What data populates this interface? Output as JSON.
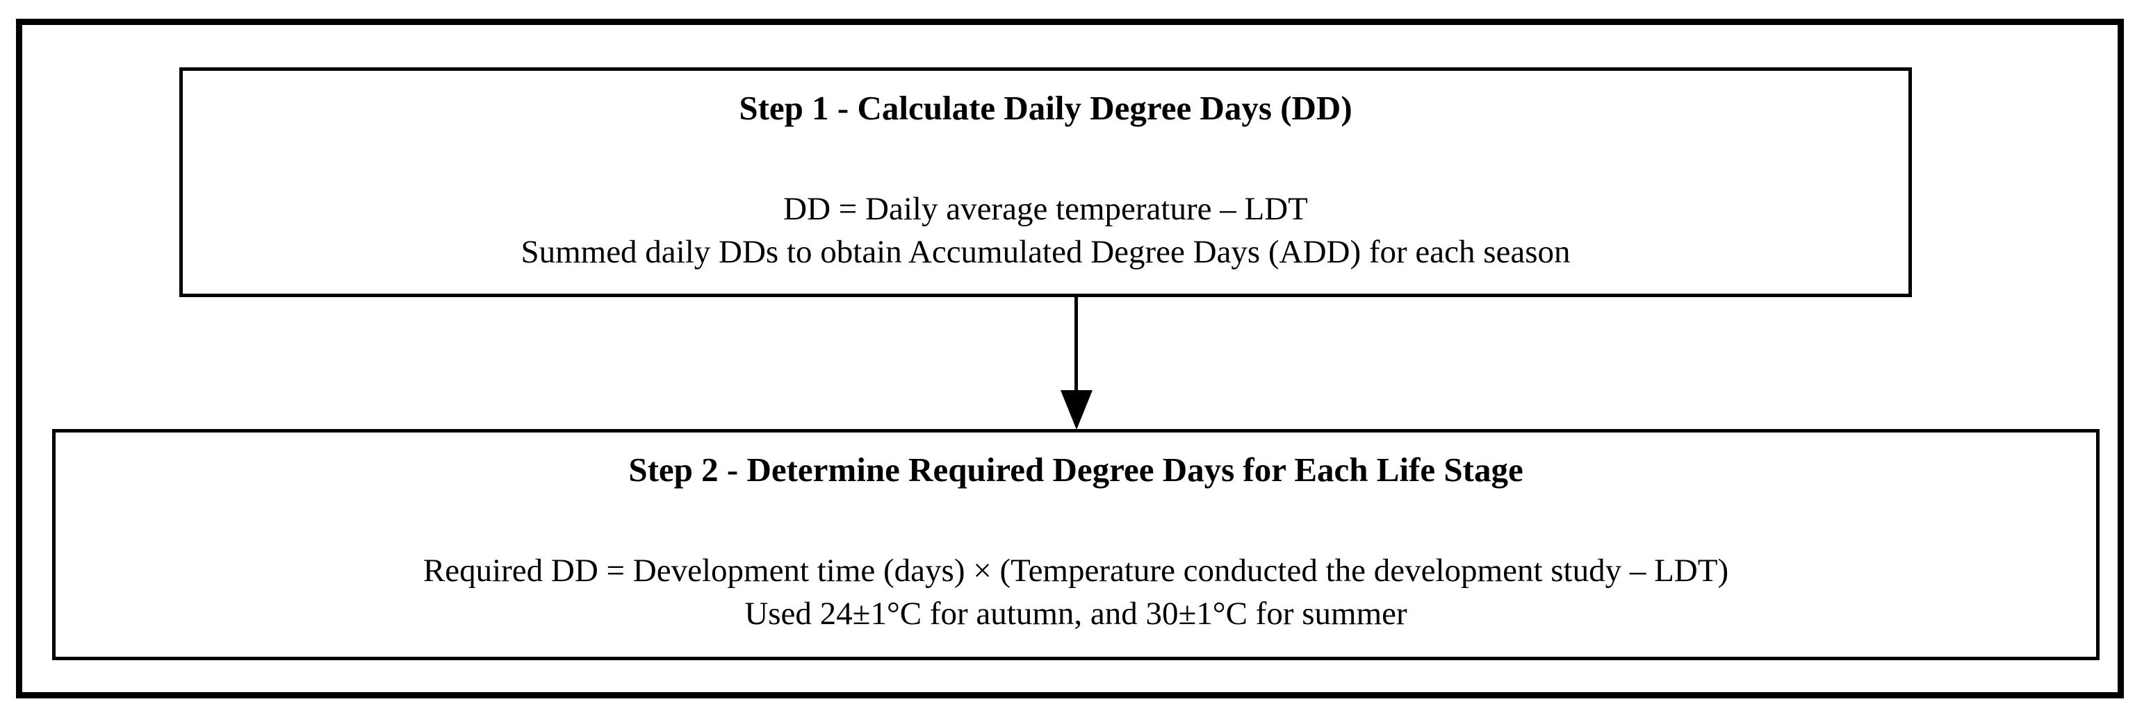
{
  "figure": {
    "step1": {
      "title": "Step 1 - Calculate Daily Degree Days (DD)",
      "formula": "DD = Daily average temperature – LDT",
      "description": "Summed daily DDs to obtain Accumulated Degree Days (ADD) for each season"
    },
    "step2": {
      "title": "Step 2 - Determine Required Degree Days for Each Life Stage",
      "formula": "Required DD = Development time (days) × (Temperature conducted the development study – LDT)",
      "description": "Used 24±1°C for autumn, and 30±1°C for summer"
    },
    "connector": {
      "type": "down-arrow"
    },
    "colors": {
      "border": "#000000",
      "background": "#ffffff",
      "text": "#000000"
    }
  }
}
